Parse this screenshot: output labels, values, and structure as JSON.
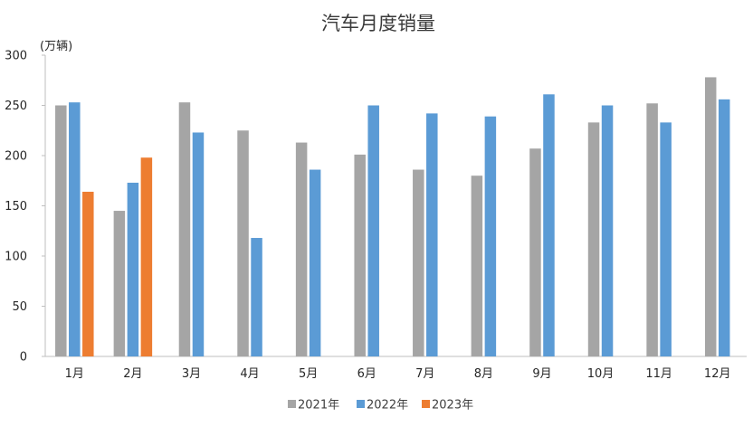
{
  "chart_data": {
    "type": "bar",
    "title": "汽车月度销量",
    "unit_label": "(万辆)",
    "xlabel": "",
    "ylabel": "",
    "ylim": [
      0,
      300
    ],
    "yticks": [
      0,
      50,
      100,
      150,
      200,
      250,
      300
    ],
    "grid": false,
    "legend_position": "bottom",
    "categories": [
      "1月",
      "2月",
      "3月",
      "4月",
      "5月",
      "6月",
      "7月",
      "8月",
      "9月",
      "10月",
      "11月",
      "12月"
    ],
    "series": [
      {
        "name": "2021年",
        "color": "#A5A5A5",
        "values": [
          250,
          145,
          253,
          225,
          213,
          201,
          186,
          180,
          207,
          233,
          252,
          278
        ]
      },
      {
        "name": "2022年",
        "color": "#5B9BD5",
        "values": [
          253,
          173,
          223,
          118,
          186,
          250,
          242,
          239,
          261,
          250,
          233,
          256
        ]
      },
      {
        "name": "2023年",
        "color": "#ED7D31",
        "values": [
          164,
          198,
          null,
          null,
          null,
          null,
          null,
          null,
          null,
          null,
          null,
          null
        ]
      }
    ]
  }
}
